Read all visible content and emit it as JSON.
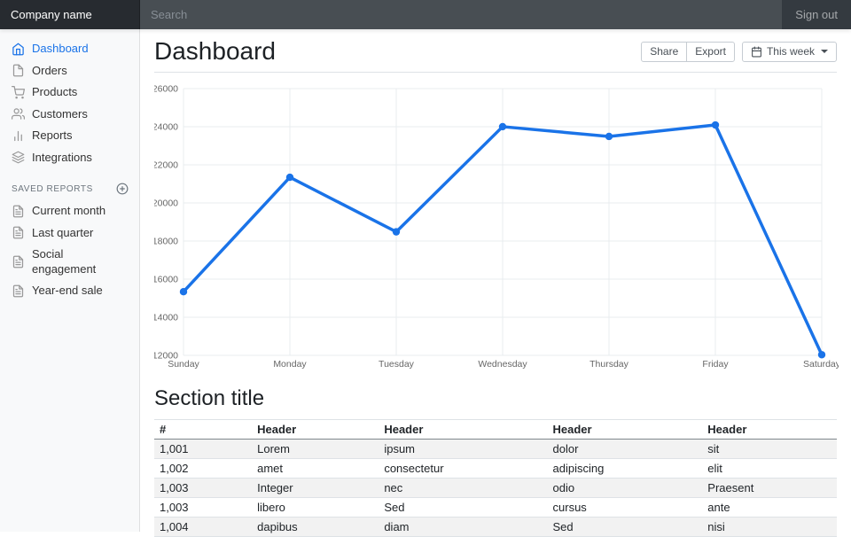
{
  "navbar": {
    "brand": "Company name",
    "search_placeholder": "Search",
    "sign_out": "Sign out"
  },
  "sidebar": {
    "items": [
      {
        "label": "Dashboard",
        "icon": "home",
        "active": true
      },
      {
        "label": "Orders",
        "icon": "file",
        "active": false
      },
      {
        "label": "Products",
        "icon": "shopping-cart",
        "active": false
      },
      {
        "label": "Customers",
        "icon": "users",
        "active": false
      },
      {
        "label": "Reports",
        "icon": "bar-chart",
        "active": false
      },
      {
        "label": "Integrations",
        "icon": "layers",
        "active": false
      }
    ],
    "saved_reports_heading": "Saved reports",
    "saved_reports_add_icon": "plus-circle",
    "saved_reports": [
      {
        "label": "Current month",
        "icon": "file-text"
      },
      {
        "label": "Last quarter",
        "icon": "file-text"
      },
      {
        "label": "Social engagement",
        "icon": "file-text"
      },
      {
        "label": "Year-end sale",
        "icon": "file-text"
      }
    ]
  },
  "header": {
    "title": "Dashboard",
    "share_label": "Share",
    "export_label": "Export",
    "period_label": "This week",
    "period_icon": "calendar"
  },
  "chart_data": {
    "type": "line",
    "title": "",
    "x": [
      "Sunday",
      "Monday",
      "Tuesday",
      "Wednesday",
      "Thursday",
      "Friday",
      "Saturday"
    ],
    "series": [
      {
        "name": "weekly-values",
        "values": [
          15339,
          21345,
          18483,
          24003,
          23489,
          24092,
          12034
        ]
      }
    ],
    "ylim": [
      12000,
      26000
    ],
    "ytick_step": 2000,
    "yticks": [
      12000,
      14000,
      16000,
      18000,
      20000,
      22000,
      24000,
      26000
    ],
    "grid": true,
    "legend": "none",
    "line_color": "#1a73e8",
    "point_color": "#1a73e8",
    "grid_color": "#e9ecef",
    "tick_color": "#666666"
  },
  "section": {
    "title": "Section title",
    "table": {
      "headers": [
        "#",
        "Header",
        "Header",
        "Header",
        "Header"
      ],
      "rows": [
        [
          "1,001",
          "Lorem",
          "ipsum",
          "dolor",
          "sit"
        ],
        [
          "1,002",
          "amet",
          "consectetur",
          "adipiscing",
          "elit"
        ],
        [
          "1,003",
          "Integer",
          "nec",
          "odio",
          "Praesent"
        ],
        [
          "1,003",
          "libero",
          "Sed",
          "cursus",
          "ante"
        ],
        [
          "1,004",
          "dapibus",
          "diam",
          "Sed",
          "nisi"
        ]
      ]
    }
  }
}
